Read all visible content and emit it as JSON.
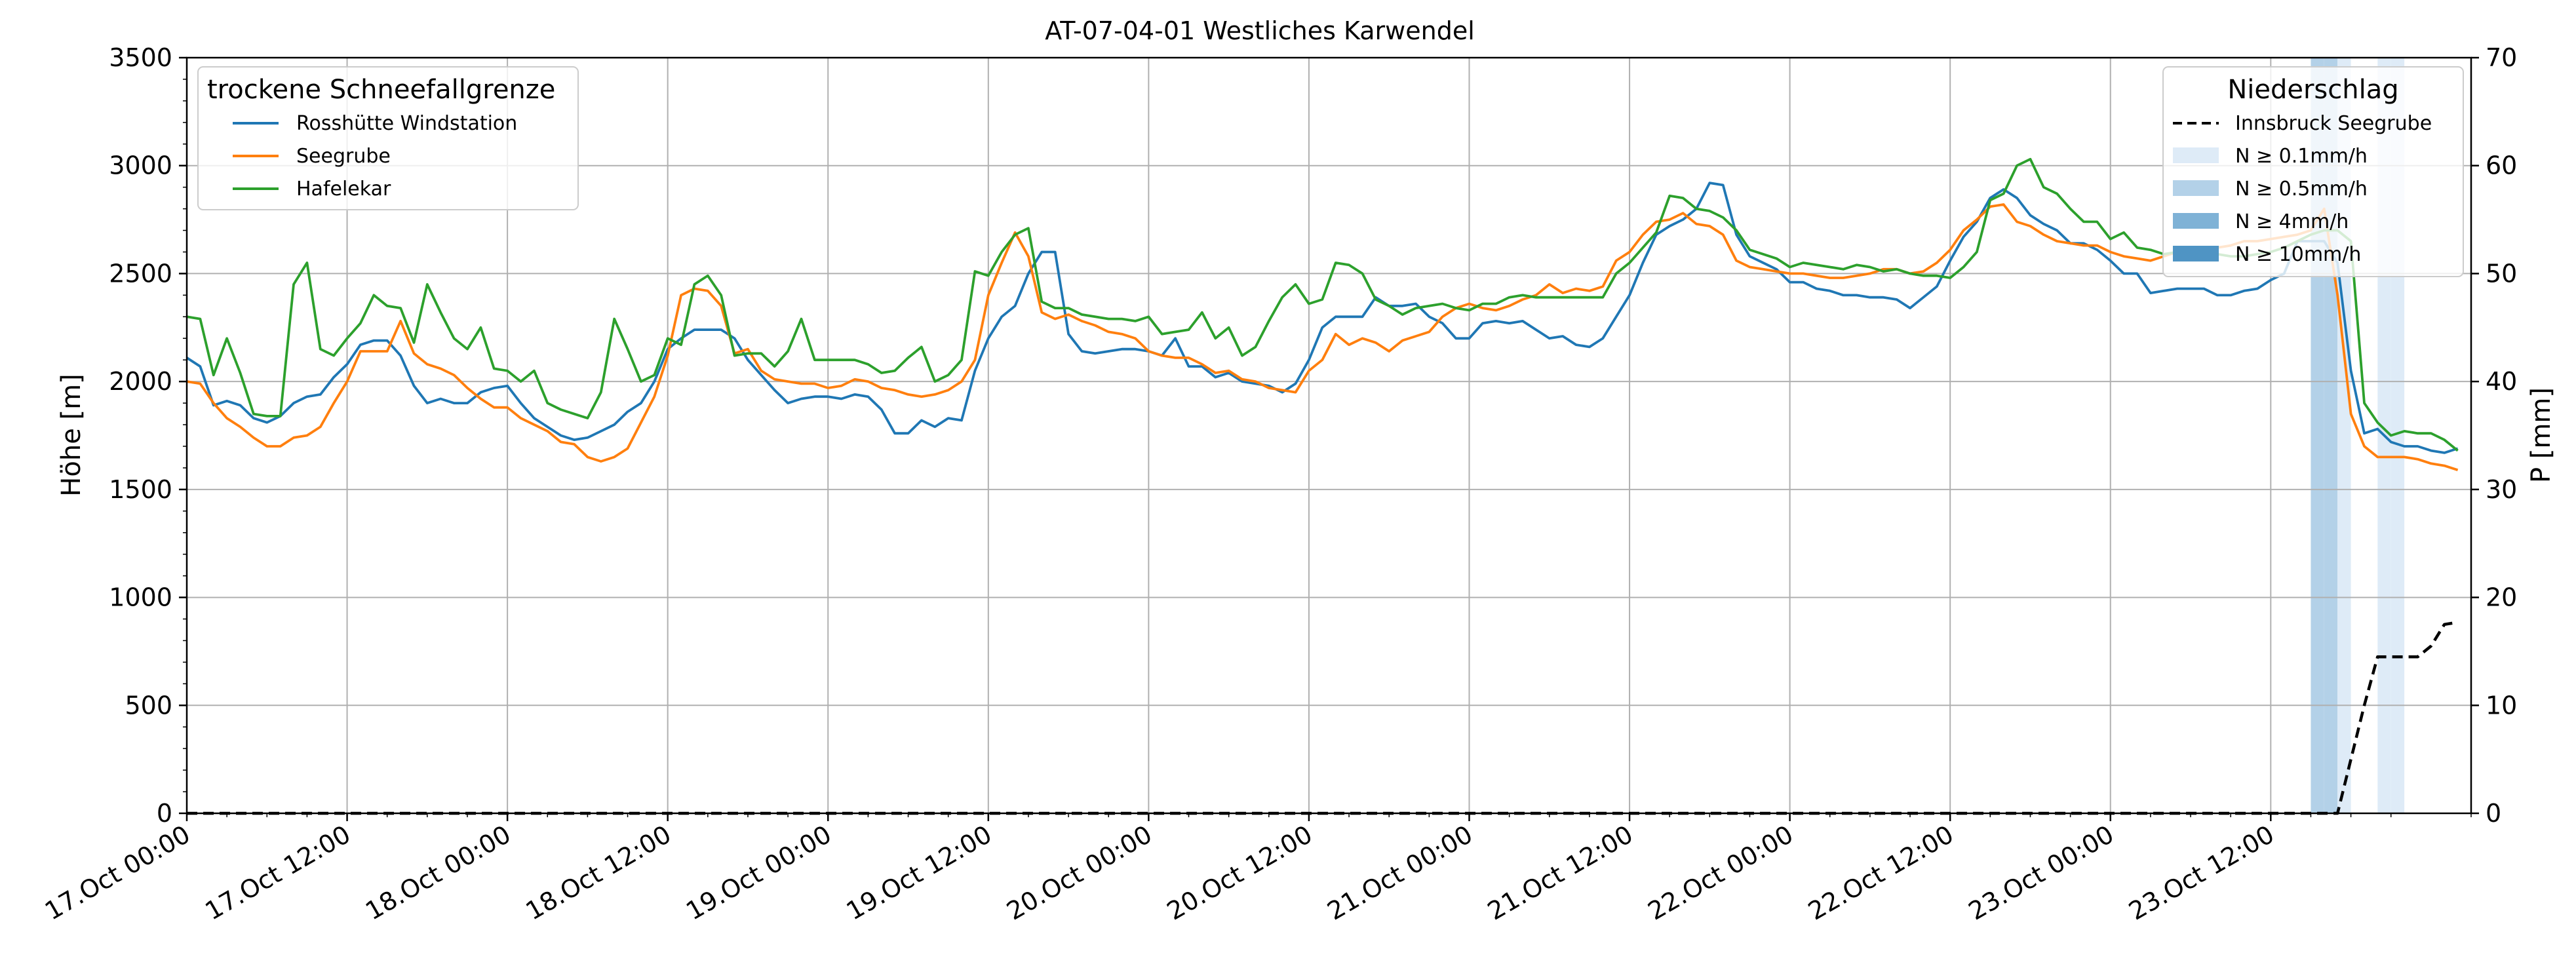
{
  "chart_data": {
    "type": "line",
    "title": "AT-07-04-01 Westliches Karwendel",
    "xlabel": "",
    "ylabel": "Höhe [m]",
    "ylabel_right": "P [mm]",
    "ylim": [
      0,
      3500
    ],
    "ylim_right": [
      0,
      70
    ],
    "grid": true,
    "x_step_hours": 1,
    "x_start": "17 Oct 00:00",
    "x_end": "24 Oct 03:00",
    "yticks": [
      0,
      500,
      1000,
      1500,
      2000,
      2500,
      3000,
      3500
    ],
    "yticks_right": [
      0,
      10,
      20,
      30,
      40,
      50,
      60,
      70
    ],
    "xticks": [
      {
        "h": 0,
        "label": "17.Oct 00:00"
      },
      {
        "h": 12,
        "label": "17.Oct 12:00"
      },
      {
        "h": 24,
        "label": "18.Oct 00:00"
      },
      {
        "h": 36,
        "label": "18.Oct 12:00"
      },
      {
        "h": 48,
        "label": "19.Oct 00:00"
      },
      {
        "h": 60,
        "label": "19.Oct 12:00"
      },
      {
        "h": 72,
        "label": "20.Oct 00:00"
      },
      {
        "h": 84,
        "label": "20.Oct 12:00"
      },
      {
        "h": 96,
        "label": "21.Oct 00:00"
      },
      {
        "h": 108,
        "label": "21.Oct 12:00"
      },
      {
        "h": 120,
        "label": "22.Oct 00:00"
      },
      {
        "h": 132,
        "label": "22.Oct 12:00"
      },
      {
        "h": 144,
        "label": "23.Oct 00:00"
      },
      {
        "h": 156,
        "label": "23.Oct 12:00"
      }
    ],
    "legend_left": {
      "title": "trockene Schneefallgrenze",
      "position": "upper-left"
    },
    "legend_right": {
      "title": "Niederschlag",
      "position": "upper-right",
      "entries": [
        {
          "label": "Innsbruck Seegrube",
          "style": "dashed",
          "color": "#000000"
        },
        {
          "label": "N ≥ 0.1mm/h",
          "color": "#deebf7"
        },
        {
          "label": "N ≥ 0.5mm/h",
          "color": "#b3d1e8"
        },
        {
          "label": "N ≥ 4mm/h",
          "color": "#7fb2d6"
        },
        {
          "label": "N ≥ 10mm/h",
          "color": "#4f94c4"
        }
      ]
    },
    "series": [
      {
        "name": "Rosshütte Windstation",
        "color": "#1f77b4",
        "values": [
          2110,
          2070,
          1890,
          1910,
          1890,
          1830,
          1810,
          1840,
          1900,
          1930,
          1940,
          2020,
          2080,
          2170,
          2190,
          2190,
          2120,
          1980,
          1900,
          1920,
          1900,
          1900,
          1950,
          1970,
          1980,
          1900,
          1830,
          1790,
          1750,
          1730,
          1740,
          1770,
          1800,
          1860,
          1900,
          2000,
          2150,
          2200,
          2240,
          2240,
          2240,
          2200,
          2100,
          2030,
          1960,
          1900,
          1920,
          1930,
          1930,
          1920,
          1940,
          1930,
          1870,
          1760,
          1760,
          1820,
          1790,
          1830,
          1820,
          2050,
          2200,
          2300,
          2350,
          2500,
          2600,
          2600,
          2220,
          2140,
          2130,
          2140,
          2150,
          2150,
          2140,
          2120,
          2200,
          2070,
          2070,
          2020,
          2040,
          2000,
          1990,
          1980,
          1950,
          1990,
          2100,
          2250,
          2300,
          2300,
          2300,
          2390,
          2350,
          2350,
          2360,
          2300,
          2270,
          2200,
          2200,
          2270,
          2280,
          2270,
          2280,
          2240,
          2200,
          2210,
          2170,
          2160,
          2200,
          2300,
          2400,
          2550,
          2680,
          2720,
          2750,
          2800,
          2920,
          2910,
          2680,
          2580,
          2550,
          2520,
          2460,
          2460,
          2430,
          2420,
          2400,
          2400,
          2390,
          2390,
          2380,
          2340,
          2390,
          2440,
          2560,
          2670,
          2740,
          2850,
          2890,
          2850,
          2770,
          2730,
          2700,
          2640,
          2640,
          2610,
          2560,
          2500,
          2500,
          2410,
          2420,
          2430,
          2430,
          2430,
          2400,
          2400,
          2420,
          2430,
          2470,
          2500,
          2650,
          2650,
          2650,
          2550,
          2050,
          1760,
          1780,
          1720,
          1700,
          1700,
          1680,
          1670,
          1690
        ]
      },
      {
        "name": "Seegrube",
        "color": "#ff7f0e",
        "values": [
          2000,
          1990,
          1900,
          1830,
          1790,
          1740,
          1700,
          1700,
          1740,
          1750,
          1790,
          1900,
          2000,
          2140,
          2140,
          2140,
          2280,
          2130,
          2080,
          2060,
          2030,
          1970,
          1920,
          1880,
          1880,
          1830,
          1800,
          1770,
          1720,
          1710,
          1650,
          1630,
          1650,
          1690,
          1810,
          1930,
          2120,
          2400,
          2430,
          2420,
          2350,
          2130,
          2150,
          2050,
          2010,
          2000,
          1990,
          1990,
          1970,
          1980,
          2010,
          2000,
          1970,
          1960,
          1940,
          1930,
          1940,
          1960,
          2000,
          2100,
          2400,
          2550,
          2690,
          2580,
          2320,
          2290,
          2310,
          2280,
          2260,
          2230,
          2220,
          2200,
          2140,
          2120,
          2110,
          2110,
          2080,
          2040,
          2050,
          2010,
          2000,
          1970,
          1960,
          1950,
          2050,
          2100,
          2220,
          2170,
          2200,
          2180,
          2140,
          2190,
          2210,
          2230,
          2300,
          2340,
          2360,
          2340,
          2330,
          2350,
          2380,
          2400,
          2450,
          2410,
          2430,
          2420,
          2440,
          2560,
          2600,
          2680,
          2740,
          2750,
          2780,
          2730,
          2720,
          2680,
          2560,
          2530,
          2520,
          2510,
          2500,
          2500,
          2490,
          2480,
          2480,
          2490,
          2500,
          2520,
          2520,
          2500,
          2510,
          2550,
          2610,
          2700,
          2750,
          2810,
          2820,
          2740,
          2720,
          2680,
          2650,
          2640,
          2630,
          2630,
          2600,
          2580,
          2570,
          2560,
          2580,
          2600,
          2590,
          2610,
          2620,
          2630,
          2650,
          2650,
          2660,
          2670,
          2680,
          2700,
          2800,
          2400,
          1850,
          1700,
          1650,
          1650,
          1650,
          1640,
          1620,
          1610,
          1590
        ]
      },
      {
        "name": "Hafelekar",
        "color": "#2ca02c",
        "values": [
          2300,
          2290,
          2030,
          2200,
          2040,
          1850,
          1840,
          1840,
          2450,
          2550,
          2150,
          2120,
          2200,
          2270,
          2400,
          2350,
          2340,
          2180,
          2450,
          2320,
          2200,
          2150,
          2250,
          2060,
          2050,
          2000,
          2050,
          1900,
          1870,
          1850,
          1830,
          1950,
          2290,
          2150,
          2000,
          2030,
          2200,
          2170,
          2450,
          2490,
          2400,
          2120,
          2130,
          2130,
          2070,
          2140,
          2290,
          2100,
          2100,
          2100,
          2100,
          2080,
          2040,
          2050,
          2110,
          2160,
          2000,
          2030,
          2100,
          2510,
          2490,
          2600,
          2680,
          2710,
          2370,
          2340,
          2340,
          2310,
          2300,
          2290,
          2290,
          2280,
          2300,
          2220,
          2230,
          2240,
          2320,
          2200,
          2250,
          2120,
          2160,
          2280,
          2390,
          2450,
          2360,
          2380,
          2550,
          2540,
          2500,
          2380,
          2350,
          2310,
          2340,
          2350,
          2360,
          2340,
          2330,
          2360,
          2360,
          2390,
          2400,
          2390,
          2390,
          2390,
          2390,
          2390,
          2390,
          2500,
          2550,
          2620,
          2690,
          2860,
          2850,
          2800,
          2790,
          2760,
          2700,
          2610,
          2590,
          2570,
          2530,
          2550,
          2540,
          2530,
          2520,
          2540,
          2530,
          2510,
          2520,
          2500,
          2490,
          2490,
          2480,
          2530,
          2600,
          2840,
          2870,
          3000,
          3030,
          2900,
          2870,
          2800,
          2740,
          2740,
          2660,
          2690,
          2620,
          2610,
          2590,
          2600,
          2600,
          2590,
          2590,
          2580,
          2580,
          2590,
          2600,
          2620,
          2650,
          2680,
          2700,
          2700,
          2650,
          1900,
          1810,
          1750,
          1770,
          1760,
          1760,
          1730,
          1680
        ]
      },
      {
        "name": "Innsbruck Seegrube",
        "color": "#000000",
        "dashed": true,
        "axis": "right",
        "values": [
          0,
          0,
          0,
          0,
          0,
          0,
          0,
          0,
          0,
          0,
          0,
          0,
          0,
          0,
          0,
          0,
          0,
          0,
          0,
          0,
          0,
          0,
          0,
          0,
          0,
          0,
          0,
          0,
          0,
          0,
          0,
          0,
          0,
          0,
          0,
          0,
          0,
          0,
          0,
          0,
          0,
          0,
          0,
          0,
          0,
          0,
          0,
          0,
          0,
          0,
          0,
          0,
          0,
          0,
          0,
          0,
          0,
          0,
          0,
          0,
          0,
          0,
          0,
          0,
          0,
          0,
          0,
          0,
          0,
          0,
          0,
          0,
          0,
          0,
          0,
          0,
          0,
          0,
          0,
          0,
          0,
          0,
          0,
          0,
          0,
          0,
          0,
          0,
          0,
          0,
          0,
          0,
          0,
          0,
          0,
          0,
          0,
          0,
          0,
          0,
          0,
          0,
          0,
          0,
          0,
          0,
          0,
          0,
          0,
          0,
          0,
          0,
          0,
          0,
          0,
          0,
          0,
          0,
          0,
          0,
          0,
          0,
          0,
          0,
          0,
          0,
          0,
          0,
          0,
          0,
          0,
          0,
          0,
          0,
          0,
          0,
          0,
          0,
          0,
          0,
          0,
          0,
          0,
          0,
          0,
          0,
          0,
          0,
          0,
          0,
          0,
          0,
          0,
          0,
          0,
          0,
          0,
          0,
          0,
          0,
          0,
          0,
          5,
          10,
          14.5,
          14.5,
          14.5,
          14.5,
          15.5,
          17.5,
          17.7
        ]
      }
    ],
    "precip_bands": [
      {
        "h0": 159,
        "h1": 160,
        "level": "N ≥ 0.5mm/h"
      },
      {
        "h0": 160,
        "h1": 161,
        "level": "N ≥ 0.5mm/h"
      },
      {
        "h0": 161,
        "h1": 162,
        "level": "N ≥ 0.1mm/h"
      },
      {
        "h0": 164,
        "h1": 165,
        "level": "N ≥ 0.1mm/h"
      },
      {
        "h0": 165,
        "h1": 166,
        "level": "N ≥ 0.1mm/h"
      }
    ]
  }
}
